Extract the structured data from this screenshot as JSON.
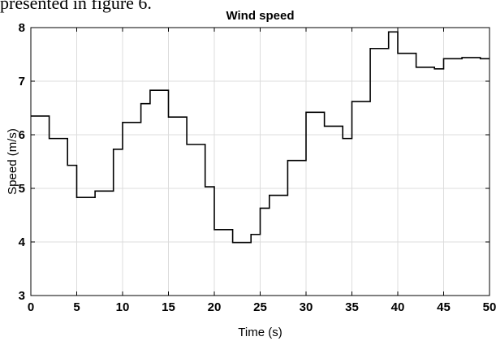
{
  "caption": "presented in figure 6.",
  "chart_data": {
    "type": "line",
    "step": true,
    "title": "Wind speed",
    "xlabel": "Time (s)",
    "ylabel": "Speed (m/s)",
    "xlim": [
      0,
      50
    ],
    "ylim": [
      3,
      8
    ],
    "xticks": [
      0,
      5,
      10,
      15,
      20,
      25,
      30,
      35,
      40,
      45,
      50
    ],
    "yticks": [
      3,
      4,
      5,
      6,
      7,
      8
    ],
    "grid": true,
    "line_color": "#000000",
    "series": [
      {
        "x": [
          0,
          2,
          4,
          5,
          7,
          9,
          10,
          12,
          13,
          15,
          17,
          19,
          20,
          22,
          24,
          25,
          26,
          28,
          30,
          32,
          34,
          35,
          37,
          39,
          40,
          42,
          44,
          45,
          47,
          49,
          50
        ],
        "y": [
          6.35,
          5.93,
          5.43,
          4.83,
          4.95,
          5.73,
          6.23,
          6.58,
          6.83,
          6.33,
          5.82,
          5.03,
          4.23,
          3.99,
          4.14,
          4.63,
          4.87,
          5.52,
          6.42,
          6.16,
          5.93,
          6.62,
          7.61,
          7.92,
          7.52,
          7.26,
          7.23,
          7.42,
          7.44,
          7.42,
          7.42
        ]
      }
    ]
  }
}
